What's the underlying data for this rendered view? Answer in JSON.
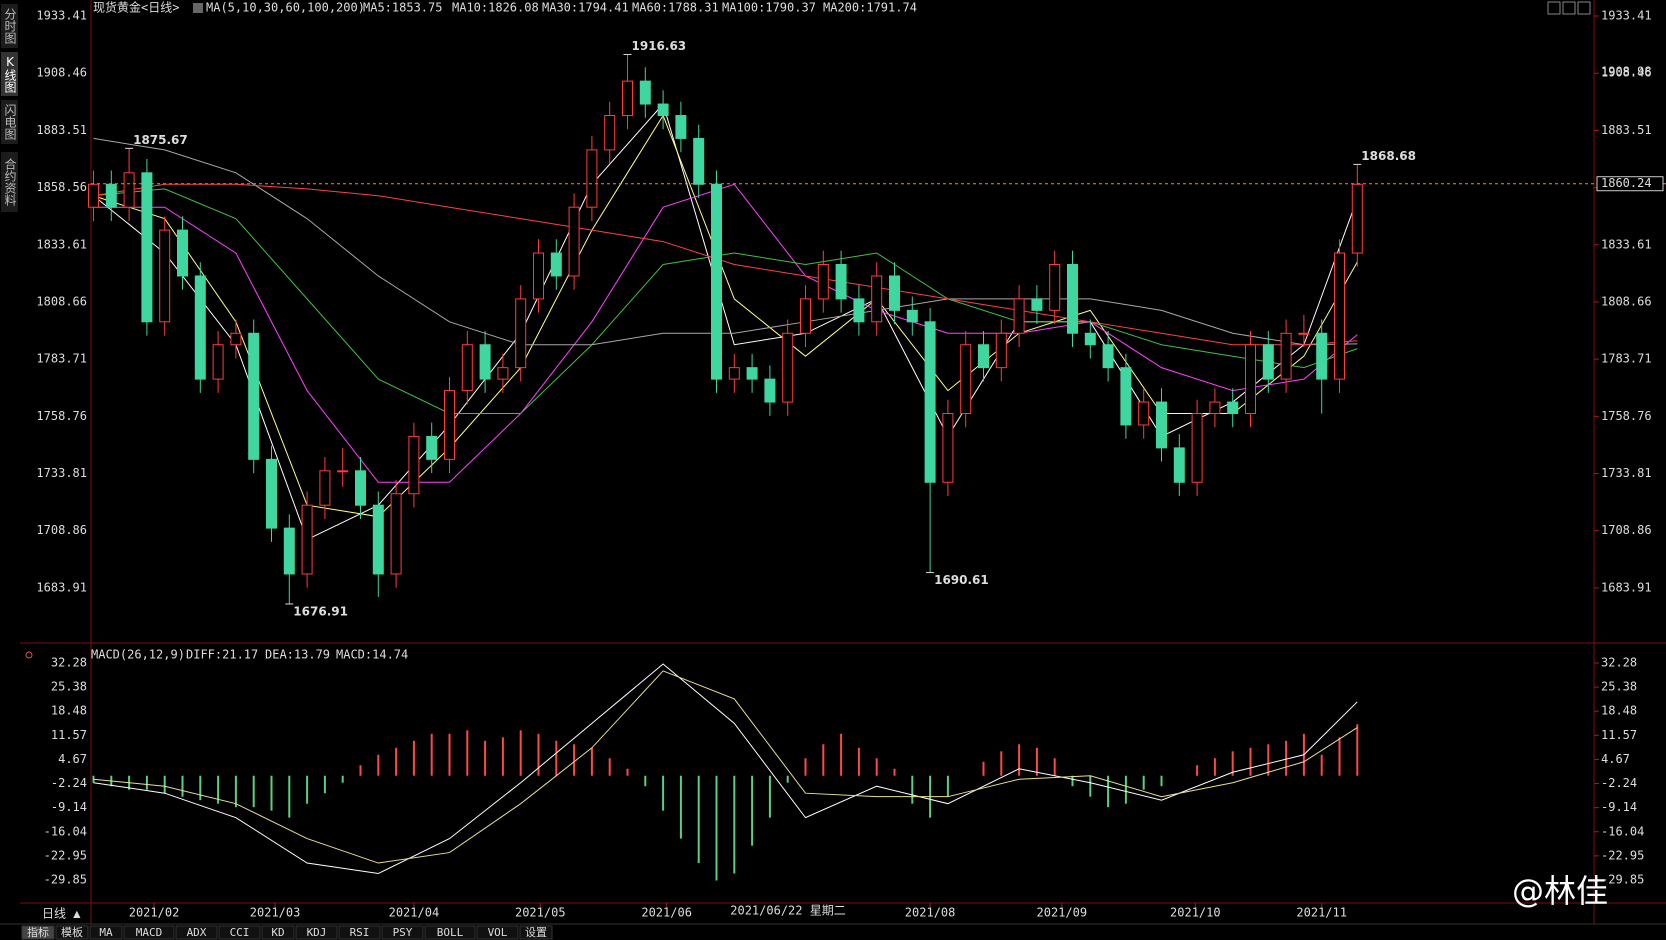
{
  "ui": {
    "symbol": "现货黄金<日线>",
    "ma_params": "MA(5,10,30,60,100,200)",
    "side_tabs": [
      "分时图",
      "K线图",
      "闪电图",
      "合约资料"
    ],
    "period": "日线 ▲",
    "bottom_tabs": [
      "指标",
      "模板",
      "MA",
      "MACD",
      "ADX",
      "CCI",
      "KD",
      "KDJ",
      "RSI",
      "PSY",
      "BOLL",
      "VOL",
      "设置"
    ],
    "crosshair_date": "2021/06/22 星期二",
    "watermark": "@林佳"
  },
  "chart_data": [
    {
      "type": "candlestick",
      "up_color": "#ff3b3b",
      "down_color": "#3fd6a0",
      "open": [
        1850,
        1860,
        1850,
        1865,
        1800,
        1840,
        1820,
        1775,
        1790,
        1795,
        1740,
        1710,
        1690,
        1720,
        1735,
        1735,
        1720,
        1690,
        1725,
        1750,
        1740,
        1770,
        1790,
        1775,
        1780,
        1810,
        1830,
        1820,
        1850,
        1875,
        1890,
        1905,
        1895,
        1890,
        1880,
        1860,
        1775,
        1780,
        1775,
        1765,
        1795,
        1810,
        1825,
        1810,
        1800,
        1820,
        1805,
        1800,
        1730,
        1760,
        1790,
        1780,
        1795,
        1810,
        1805,
        1825,
        1795,
        1790,
        1780,
        1755,
        1765,
        1745,
        1730,
        1760,
        1765,
        1760,
        1790,
        1775,
        1795,
        1795,
        1775,
        1830
      ],
      "high": [
        1866,
        1866,
        1875.67,
        1871,
        1846,
        1846,
        1826,
        1796,
        1801,
        1801,
        1746,
        1716,
        1726,
        1741,
        1745,
        1741,
        1726,
        1731,
        1756,
        1756,
        1776,
        1796,
        1796,
        1786,
        1816,
        1836,
        1836,
        1856,
        1881,
        1896,
        1916.63,
        1911,
        1901,
        1896,
        1886,
        1866,
        1786,
        1786,
        1781,
        1801,
        1816,
        1831,
        1831,
        1816,
        1826,
        1826,
        1811,
        1806,
        1766,
        1796,
        1796,
        1801,
        1816,
        1816,
        1831,
        1831,
        1801,
        1796,
        1786,
        1771,
        1771,
        1751,
        1766,
        1771,
        1771,
        1796,
        1796,
        1801,
        1803,
        1801,
        1836,
        1868.68
      ],
      "low": [
        1844,
        1844,
        1844,
        1794,
        1794,
        1814,
        1769,
        1769,
        1784,
        1734,
        1704,
        1676.91,
        1684,
        1714,
        1728,
        1714,
        1680,
        1684,
        1719,
        1734,
        1734,
        1764,
        1769,
        1769,
        1774,
        1804,
        1814,
        1814,
        1844,
        1869,
        1884,
        1889,
        1884,
        1874,
        1854,
        1769,
        1769,
        1769,
        1759,
        1759,
        1789,
        1804,
        1804,
        1794,
        1794,
        1799,
        1794,
        1690.61,
        1724,
        1754,
        1774,
        1774,
        1789,
        1799,
        1799,
        1789,
        1784,
        1774,
        1749,
        1749,
        1739,
        1724,
        1724,
        1754,
        1754,
        1754,
        1769,
        1769,
        1789,
        1760,
        1769,
        1824
      ],
      "close": [
        1860,
        1850,
        1865,
        1800,
        1840,
        1820,
        1775,
        1790,
        1795,
        1740,
        1710,
        1690,
        1720,
        1735,
        1735,
        1720,
        1690,
        1725,
        1750,
        1740,
        1770,
        1790,
        1775,
        1780,
        1810,
        1830,
        1820,
        1850,
        1875,
        1890,
        1905,
        1895,
        1890,
        1880,
        1860,
        1775,
        1780,
        1775,
        1765,
        1795,
        1810,
        1825,
        1810,
        1800,
        1820,
        1805,
        1800,
        1730,
        1760,
        1790,
        1780,
        1795,
        1810,
        1805,
        1825,
        1795,
        1790,
        1780,
        1755,
        1765,
        1745,
        1730,
        1760,
        1765,
        1760,
        1790,
        1775,
        1795,
        1795,
        1775,
        1830,
        1860
      ],
      "ma_x": [
        0,
        4,
        8,
        12,
        16,
        20,
        24,
        28,
        32,
        36,
        40,
        44,
        48,
        52,
        56,
        60,
        64,
        68,
        71
      ],
      "series": [
        {
          "label": "MA5:1853.75",
          "color": "#ffffff",
          "values": [
            1855,
            1830,
            1790,
            1705,
            1720,
            1755,
            1795,
            1860,
            1895,
            1790,
            1795,
            1810,
            1750,
            1800,
            1800,
            1750,
            1765,
            1790,
            1853.75
          ]
        },
        {
          "label": "MA10:1826.08",
          "color": "#ffff80",
          "values": [
            1855,
            1845,
            1800,
            1720,
            1715,
            1745,
            1780,
            1840,
            1890,
            1810,
            1785,
            1810,
            1770,
            1795,
            1805,
            1760,
            1760,
            1785,
            1826.08
          ]
        },
        {
          "label": "MA30:1794.41",
          "color": "#ff40ff",
          "values": [
            1850,
            1850,
            1830,
            1770,
            1730,
            1730,
            1760,
            1800,
            1850,
            1860,
            1820,
            1805,
            1795,
            1795,
            1800,
            1780,
            1770,
            1775,
            1794.41
          ]
        },
        {
          "label": "MA60:1788.31",
          "color": "#40c040",
          "values": [
            1855,
            1858,
            1845,
            1810,
            1775,
            1760,
            1760,
            1790,
            1825,
            1830,
            1825,
            1830,
            1810,
            1800,
            1800,
            1790,
            1785,
            1780,
            1788.31
          ]
        },
        {
          "label": "MA100:1790.37",
          "color": "#a8a8a8",
          "values": [
            1880,
            1875,
            1865,
            1845,
            1820,
            1800,
            1790,
            1790,
            1795,
            1795,
            1800,
            1805,
            1810,
            1810,
            1810,
            1805,
            1795,
            1790,
            1790.37
          ]
        },
        {
          "label": "MA200:1791.74",
          "color": "#ff4040",
          "values": [
            1855,
            1860,
            1860,
            1858,
            1855,
            1850,
            1845,
            1840,
            1835,
            1825,
            1820,
            1815,
            1810,
            1805,
            1800,
            1795,
            1790,
            1790,
            1791.74
          ]
        }
      ],
      "annotations": [
        {
          "x": 2,
          "y": 1875.67,
          "color": "#ff4060"
        },
        {
          "x": 11,
          "y": 1676.91,
          "color": "#3fd6a0"
        },
        {
          "x": 30,
          "y": 1916.63,
          "color": "#ff4060"
        },
        {
          "x": 47,
          "y": 1690.61,
          "color": "#3fd6a0"
        },
        {
          "x": 71,
          "y": 1868.68,
          "color": "#ff4060"
        }
      ],
      "last_price": 1860.24,
      "marker_price": 1908.98,
      "ylim": [
        1662.5,
        1933.41
      ],
      "yticks": [
        1933.41,
        1908.46,
        1883.51,
        1858.56,
        1833.61,
        1808.66,
        1783.71,
        1758.76,
        1733.81,
        1708.86,
        1683.91
      ],
      "xticks": [
        {
          "value": 3.4,
          "label": "2021/02"
        },
        {
          "value": 10.2,
          "label": "2021/03"
        },
        {
          "value": 18,
          "label": "2021/04"
        },
        {
          "value": 25.1,
          "label": "2021/05"
        },
        {
          "value": 32.2,
          "label": "2021/06"
        },
        {
          "value": 47,
          "label": "2021/08"
        },
        {
          "value": 54.4,
          "label": "2021/09"
        },
        {
          "value": 61.9,
          "label": "2021/10"
        },
        {
          "value": 69,
          "label": "2021/11"
        }
      ]
    },
    {
      "type": "macd",
      "title": "MACD(26,12,9)",
      "x": [
        0,
        4,
        8,
        12,
        16,
        20,
        24,
        28,
        32,
        36,
        40,
        44,
        48,
        52,
        56,
        60,
        64,
        68,
        71
      ],
      "series": [
        {
          "label": "DIFF:21.17",
          "color": "#ffffff",
          "values": [
            -2,
            -5,
            -12,
            -25,
            -28,
            -18,
            -2,
            15,
            32,
            15,
            -12,
            -3,
            -8,
            2,
            -2,
            -7,
            1,
            6,
            21.17
          ]
        },
        {
          "label": "DEA:13.79",
          "color": "#e8e090",
          "values": [
            -1,
            -3,
            -8,
            -18,
            -25,
            -22,
            -8,
            8,
            30,
            22,
            -5,
            -6,
            -6,
            -1,
            0,
            -6,
            -2,
            4,
            13.79
          ]
        }
      ],
      "histogram": {
        "label": "MACD:14.74",
        "color": "#ff40ff",
        "up_color": "#ff4848",
        "down_color": "#5cd080",
        "values": [
          -2,
          -3,
          -4,
          -4,
          -5,
          -6,
          -7,
          -8,
          -9,
          -9,
          -10,
          -12,
          -8,
          -5,
          -2,
          3,
          6,
          8,
          10,
          12,
          12,
          13,
          10,
          11,
          13,
          12,
          10,
          9,
          8,
          5,
          2,
          -3,
          -10,
          -18,
          -25,
          -30,
          -28,
          -20,
          -12,
          -2,
          5,
          9,
          12,
          8,
          5,
          2,
          -8,
          -12,
          -6,
          0,
          4,
          7,
          9,
          8,
          5,
          -3,
          -6,
          -9,
          -8,
          -4,
          -3,
          0,
          3,
          5,
          7,
          8,
          9,
          10,
          12,
          6,
          11,
          14.74
        ]
      },
      "ylim": [
        -36.44,
        32.85
      ],
      "yticks": [
        32.28,
        25.38,
        18.48,
        11.57,
        4.67,
        -2.24,
        -9.14,
        -16.04,
        -22.95,
        -29.85
      ]
    }
  ]
}
